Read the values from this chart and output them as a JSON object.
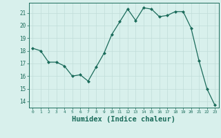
{
  "x": [
    0,
    1,
    2,
    3,
    4,
    5,
    6,
    7,
    8,
    9,
    10,
    11,
    12,
    13,
    14,
    15,
    16,
    17,
    18,
    19,
    20,
    21,
    22,
    23
  ],
  "y": [
    18.2,
    18.0,
    17.1,
    17.1,
    16.8,
    16.0,
    16.1,
    15.6,
    16.7,
    17.8,
    19.3,
    20.3,
    21.3,
    20.4,
    21.4,
    21.3,
    20.7,
    20.8,
    21.1,
    21.1,
    19.8,
    17.2,
    15.0,
    13.7
  ],
  "line_color": "#1a6b5a",
  "marker": "D",
  "marker_size": 2.0,
  "bg_color": "#d8f0ec",
  "grid_color": "#c0ddd8",
  "tick_color": "#1a6b5a",
  "xlabel": "Humidex (Indice chaleur)",
  "xlabel_fontsize": 7.5,
  "ylabel_ticks": [
    14,
    15,
    16,
    17,
    18,
    19,
    20,
    21
  ],
  "xlim": [
    -0.5,
    23.5
  ],
  "ylim": [
    13.5,
    21.8
  ]
}
